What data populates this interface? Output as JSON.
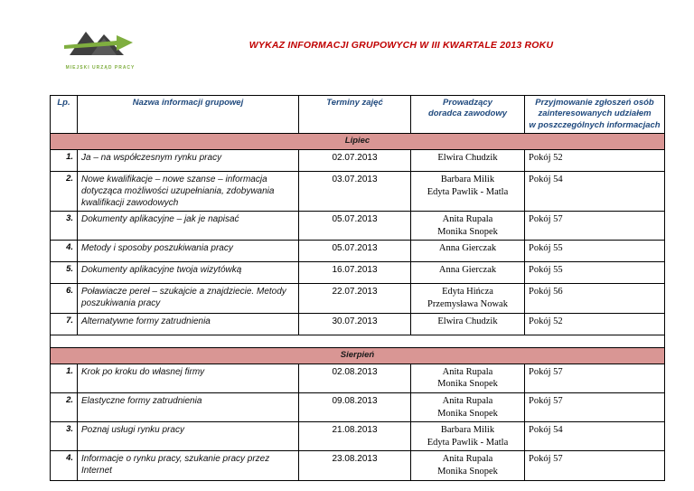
{
  "header": {
    "title": "WYKAZ  INFORMACJI GRUPOWYCH W III KWARTALE 2013 ROKU",
    "logo_caption": "MIEJSKI URZĄD PRACY"
  },
  "table": {
    "columns": [
      "Lp.",
      "Nazwa informacji grupowej",
      "Terminy zajęć",
      "Prowadzący\ndoradca zawodowy",
      "Przyjmowanie zgłoszeń osób\nzainteresowanych udziałem\nw poszczególnych informacjach"
    ],
    "sections": [
      {
        "label": "Lipiec",
        "rows": [
          {
            "lp": "1.",
            "name": "Ja – na współczesnym rynku pracy",
            "date": "02.07.2013",
            "leaders": [
              "Elwira Chudzik"
            ],
            "room": "Pokój 52"
          },
          {
            "lp": "2.",
            "name": "Nowe kwalifikacje – nowe szanse – informacja dotycząca możliwości uzupełniania, zdobywania kwalifikacji zawodowych",
            "date": "03.07.2013",
            "leaders": [
              "Barbara Milik",
              "Edyta Pawlik - Matla"
            ],
            "room": "Pokój 54"
          },
          {
            "lp": "3.",
            "name": "Dokumenty aplikacyjne – jak je napisać",
            "date": "05.07.2013",
            "leaders": [
              "Anita Rupala",
              "Monika Snopek"
            ],
            "room": "Pokój 57"
          },
          {
            "lp": "4.",
            "name": "Metody i sposoby poszukiwania pracy",
            "date": "05.07.2013",
            "leaders": [
              "Anna Gierczak"
            ],
            "room": "Pokój 55"
          },
          {
            "lp": "5.",
            "name": "Dokumenty aplikacyjne twoja wizytówką",
            "date": "16.07.2013",
            "leaders": [
              "Anna Gierczak"
            ],
            "room": "Pokój 55"
          },
          {
            "lp": "6.",
            "name": "Poławiacze pereł – szukajcie a znajdziecie. Metody poszukiwania pracy",
            "date": "22.07.2013",
            "leaders": [
              "Edyta Hińcza",
              "Przemysława Nowak"
            ],
            "room": "Pokój 56"
          },
          {
            "lp": "7.",
            "name": "Alternatywne formy zatrudnienia",
            "date": "30.07.2013",
            "leaders": [
              "Elwira Chudzik"
            ],
            "room": "Pokój 52"
          }
        ]
      },
      {
        "label": "Sierpień",
        "rows": [
          {
            "lp": "1.",
            "name": "Krok po kroku do własnej firmy",
            "date": "02.08.2013",
            "leaders": [
              "Anita Rupala",
              "Monika Snopek"
            ],
            "room": "Pokój 57"
          },
          {
            "lp": "2.",
            "name": "Elastyczne formy zatrudnienia",
            "date": "09.08.2013",
            "leaders": [
              "Anita Rupala",
              "Monika Snopek"
            ],
            "room": "Pokój 57"
          },
          {
            "lp": "3.",
            "name": "Poznaj usługi rynku pracy",
            "date": "21.08.2013",
            "leaders": [
              "Barbara Milik",
              "Edyta Pawlik - Matla"
            ],
            "room": "Pokój 54"
          },
          {
            "lp": "4.",
            "name": "Informacje o rynku pracy, szukanie pracy przez Internet",
            "date": "23.08.2013",
            "leaders": [
              "Anita Rupala",
              "Monika Snopek"
            ],
            "room": "Pokój 57"
          }
        ]
      }
    ]
  },
  "colors": {
    "title_red": "#c00000",
    "header_blue": "#1f497d",
    "section_pink": "#d99694",
    "logo_green": "#7fae3f"
  }
}
